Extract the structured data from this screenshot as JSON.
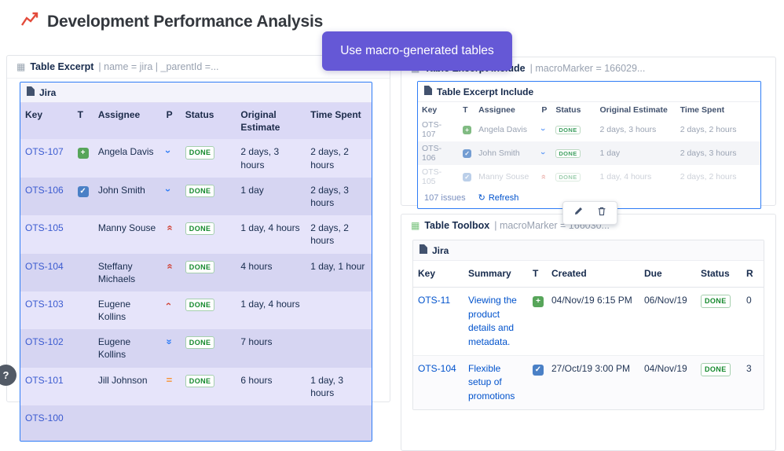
{
  "colors": {
    "accent_purple": "#6558d6",
    "selection_blue": "#2e7cf6",
    "link_blue": "#0052cc",
    "done_green": "#14892c",
    "priority_red": "#d04437",
    "priority_blue": "#2e7cf6",
    "priority_orange": "#f79232"
  },
  "page": {
    "title": "Development Performance Analysis",
    "help_label": "?"
  },
  "tooltip": {
    "label": "Use macro-generated tables"
  },
  "excerpt_panel": {
    "title": "Table Excerpt",
    "params": "| name = jira | _parentId =...",
    "table": {
      "title": "Jira",
      "columns": [
        "Key",
        "T",
        "Assignee",
        "P",
        "Status",
        "Original Estimate",
        "Time Spent"
      ],
      "rows": [
        {
          "key": "OTS-107",
          "type": "story",
          "assignee": "Angela Davis",
          "priority": "low",
          "status": "DONE",
          "original_estimate": "2 days, 3 hours",
          "time_spent": "2 days, 2 hours"
        },
        {
          "key": "OTS-106",
          "type": "task",
          "assignee": "John Smith",
          "priority": "low",
          "status": "DONE",
          "original_estimate": "1 day",
          "time_spent": "2 days, 3 hours"
        },
        {
          "key": "OTS-105",
          "type": "",
          "assignee": "Manny Souse",
          "priority": "highest",
          "status": "DONE",
          "original_estimate": "1 day, 4 hours",
          "time_spent": "2 days, 2 hours"
        },
        {
          "key": "OTS-104",
          "type": "",
          "assignee": "Steffany Michaels",
          "priority": "highest",
          "status": "DONE",
          "original_estimate": "4 hours",
          "time_spent": "1 day, 1 hour"
        },
        {
          "key": "OTS-103",
          "type": "",
          "assignee": "Eugene Kollins",
          "priority": "high",
          "status": "DONE",
          "original_estimate": "1 day, 4 hours",
          "time_spent": ""
        },
        {
          "key": "OTS-102",
          "type": "",
          "assignee": "Eugene Kollins",
          "priority": "lowest",
          "status": "DONE",
          "original_estimate": "7 hours",
          "time_spent": ""
        },
        {
          "key": "OTS-101",
          "type": "",
          "assignee": "Jill Johnson",
          "priority": "medium",
          "status": "DONE",
          "original_estimate": "6 hours",
          "time_spent": "1 day, 3 hours"
        },
        {
          "key": "OTS-100",
          "type": "",
          "assignee": "",
          "priority": "",
          "status": "",
          "original_estimate": "",
          "time_spent": ""
        }
      ]
    }
  },
  "include_panel": {
    "title": "Table Excerpt Include",
    "params": "| macroMarker = 166029...",
    "inner_title": "Table Excerpt Include",
    "table": {
      "columns": [
        "Key",
        "T",
        "Assignee",
        "P",
        "Status",
        "Original Estimate",
        "Time Spent"
      ],
      "rows": [
        {
          "key": "OTS-107",
          "type": "story",
          "assignee": "Angela Davis",
          "priority": "low",
          "status": "DONE",
          "original_estimate": "2 days, 3 hours",
          "time_spent": "2 days, 2 hours"
        },
        {
          "key": "OTS-106",
          "type": "task",
          "assignee": "John Smith",
          "priority": "low",
          "status": "DONE",
          "original_estimate": "1 day",
          "time_spent": "2 days, 3 hours"
        },
        {
          "key": "OTS-105",
          "type": "task",
          "assignee": "Manny Souse",
          "priority": "highest",
          "status": "DONE",
          "original_estimate": "1 day, 4 hours",
          "time_spent": "2 days, 2 hours"
        }
      ]
    },
    "footer": {
      "issues_label": "107 issues",
      "refresh_label": "Refresh"
    }
  },
  "floating_toolbar": {
    "buttons": [
      "edit",
      "delete"
    ]
  },
  "toolbox_panel": {
    "title": "Table Toolbox",
    "params": "| macroMarker = 166030...",
    "table": {
      "title": "Jira",
      "columns": [
        "Key",
        "Summary",
        "T",
        "Created",
        "Due",
        "Status",
        "R"
      ],
      "rows": [
        {
          "key": "OTS-11",
          "summary": "Viewing the product details and metadata.",
          "type": "story",
          "created": "04/Nov/19 6:15 PM",
          "due": "06/Nov/19",
          "status": "DONE",
          "remaining": "0"
        },
        {
          "key": "OTS-104",
          "summary": "Flexible setup of promotions",
          "type": "task",
          "created": "27/Oct/19 3:00 PM",
          "due": "04/Nov/19",
          "status": "DONE",
          "remaining": "3"
        }
      ]
    }
  }
}
